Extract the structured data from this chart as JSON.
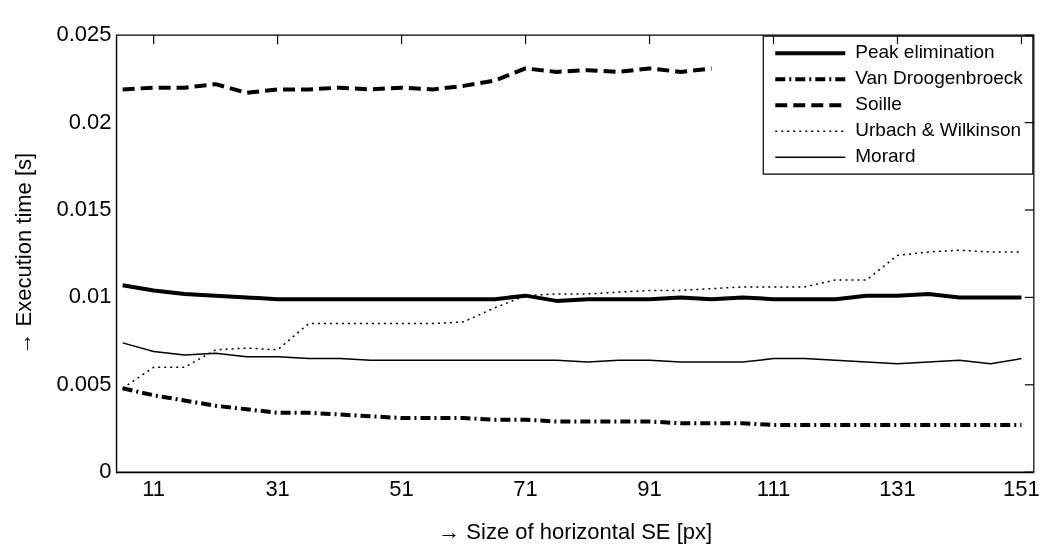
{
  "chart_data": {
    "type": "line",
    "xlabel": "→ Size of horizontal SE [px]",
    "ylabel": "→ Execution time [s]",
    "x": [
      6,
      11,
      16,
      21,
      26,
      31,
      36,
      41,
      46,
      51,
      56,
      61,
      66,
      71,
      76,
      81,
      86,
      91,
      96,
      101,
      106,
      111,
      116,
      121,
      126,
      131,
      136,
      141,
      146,
      151
    ],
    "xlim": [
      5,
      153
    ],
    "xticks": [
      11,
      31,
      51,
      71,
      91,
      111,
      131,
      151
    ],
    "ylim": [
      0,
      0.025
    ],
    "yticks": [
      0,
      0.005,
      0.01,
      0.015,
      0.02,
      0.025
    ],
    "grid": false,
    "legend": "top right",
    "marker": "none",
    "series": [
      {
        "name": "Peak elimination",
        "color": "#000000",
        "line_style": "solid",
        "values": [
          0.0107,
          0.0104,
          0.0102,
          0.0101,
          0.01,
          0.0099,
          0.0099,
          0.0099,
          0.0099,
          0.0099,
          0.0099,
          0.0099,
          0.0099,
          0.0101,
          0.0098,
          0.0099,
          0.0099,
          0.0099,
          0.01,
          0.0099,
          0.01,
          0.0099,
          0.0099,
          0.0099,
          0.0101,
          0.0101,
          0.0102,
          0.01,
          0.01,
          0.01
        ]
      },
      {
        "name": "Van Droogenbroeck",
        "color": "#000000",
        "line_style": "dashdot",
        "values": [
          0.0048,
          0.0044,
          0.0041,
          0.0038,
          0.0036,
          0.0034,
          0.0034,
          0.0033,
          0.0032,
          0.0031,
          0.0031,
          0.0031,
          0.003,
          0.003,
          0.0029,
          0.0029,
          0.0029,
          0.0029,
          0.0028,
          0.0028,
          0.0028,
          0.0027,
          0.0027,
          0.0027,
          0.0027,
          0.0027,
          0.0027,
          0.0027,
          0.0027,
          0.0027
        ]
      },
      {
        "name": "Soille",
        "color": "#000000",
        "line_style": "dashed",
        "values": [
          0.0219,
          0.022,
          0.022,
          0.0222,
          0.0217,
          0.0219,
          0.0219,
          0.022,
          0.0219,
          0.022,
          0.0219,
          0.0221,
          0.0224,
          0.0231,
          0.0229,
          0.023,
          0.0229,
          0.0231,
          0.0229,
          0.0231,
          null,
          null,
          null,
          null,
          null,
          null,
          null,
          null,
          null,
          null
        ]
      },
      {
        "name": "Urbach & Wilkinson",
        "color": "#000000",
        "line_style": "dotted",
        "values": [
          0.0048,
          0.006,
          0.006,
          0.007,
          0.0071,
          0.007,
          0.0085,
          0.0085,
          0.0085,
          0.0085,
          0.0085,
          0.0086,
          0.0094,
          0.0101,
          0.0102,
          0.0102,
          0.0103,
          0.0104,
          0.0104,
          0.0105,
          0.0106,
          0.0106,
          0.0106,
          0.011,
          0.011,
          0.0124,
          0.0126,
          0.0127,
          0.0126,
          0.0126
        ]
      },
      {
        "name": "Morard",
        "color": "#000000",
        "line_style": "solid",
        "values": [
          0.0074,
          0.0069,
          0.0067,
          0.0068,
          0.0066,
          0.0066,
          0.0065,
          0.0065,
          0.0064,
          0.0064,
          0.0064,
          0.0064,
          0.0064,
          0.0064,
          0.0064,
          0.0063,
          0.0064,
          0.0064,
          0.0063,
          0.0063,
          0.0063,
          0.0065,
          0.0065,
          0.0064,
          0.0063,
          0.0062,
          0.0063,
          0.0064,
          0.0062,
          0.0065
        ]
      }
    ]
  }
}
